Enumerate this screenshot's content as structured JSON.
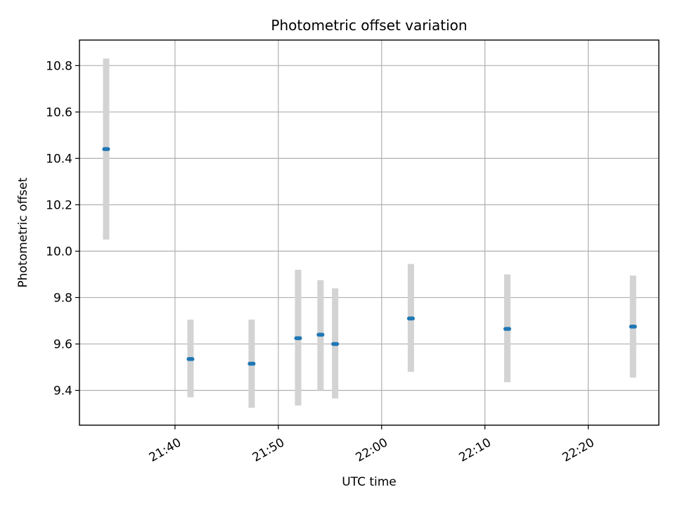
{
  "chart_data": {
    "type": "scatter",
    "title": "Photometric offset variation",
    "xlabel": "UTC time",
    "ylabel": "Photometric offset",
    "x_axis_kind": "time",
    "x_tick_labels": [
      "21:40",
      "21:50",
      "22:00",
      "22:10",
      "22:20"
    ],
    "x_ticks": [
      "21:40",
      "21:50",
      "22:00",
      "22:10",
      "22:20"
    ],
    "xlim": [
      "21:30:45",
      "22:26:50"
    ],
    "y_tick_labels": [
      "9.4",
      "9.6",
      "9.8",
      "10.0",
      "10.2",
      "10.4",
      "10.6",
      "10.8"
    ],
    "y_ticks": [
      9.4,
      9.6,
      9.8,
      10.0,
      10.2,
      10.4,
      10.6,
      10.8
    ],
    "ylim": [
      9.25,
      10.91
    ],
    "grid": true,
    "series": [
      {
        "points": [
          {
            "x": "21:33:20",
            "y": 10.44,
            "err_low": 10.05,
            "err_high": 10.83
          },
          {
            "x": "21:41:30",
            "y": 9.535,
            "err_low": 9.37,
            "err_high": 9.705
          },
          {
            "x": "21:47:25",
            "y": 9.515,
            "err_low": 9.325,
            "err_high": 9.705
          },
          {
            "x": "21:51:55",
            "y": 9.625,
            "err_low": 9.335,
            "err_high": 9.92
          },
          {
            "x": "21:54:05",
            "y": 9.64,
            "err_low": 9.4,
            "err_high": 9.875
          },
          {
            "x": "21:55:30",
            "y": 9.6,
            "err_low": 9.365,
            "err_high": 9.84
          },
          {
            "x": "22:02:50",
            "y": 9.71,
            "err_low": 9.48,
            "err_high": 9.945
          },
          {
            "x": "22:12:10",
            "y": 9.665,
            "err_low": 9.435,
            "err_high": 9.9
          },
          {
            "x": "22:24:20",
            "y": 9.675,
            "err_low": 9.455,
            "err_high": 9.895
          }
        ]
      }
    ],
    "colors": {
      "marker": "#1f77b4",
      "errorbar": "#d3d3d3",
      "grid": "#b0b0b0",
      "axis": "#000000"
    }
  }
}
